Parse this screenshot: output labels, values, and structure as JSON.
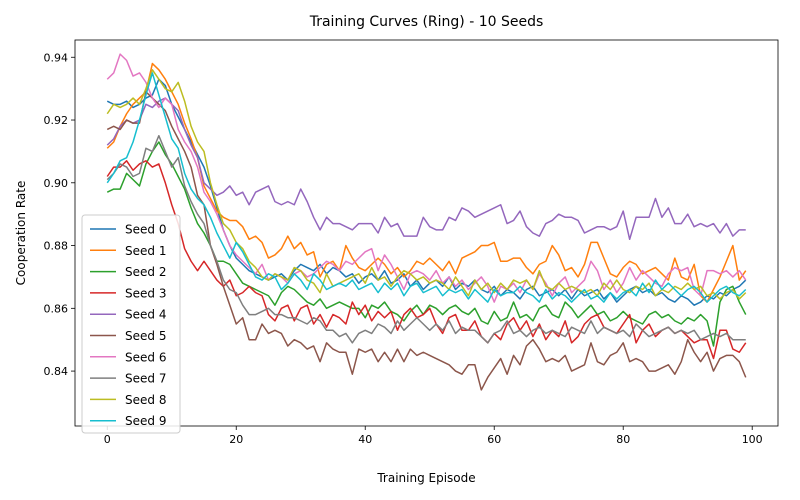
{
  "chart_data": {
    "type": "line",
    "title": "Training Curves (Ring) - 10 Seeds",
    "xlabel": "Training Episode",
    "ylabel": "Cooperation Rate",
    "xlim": [
      -5,
      104
    ],
    "ylim": [
      0.8225,
      0.9455
    ],
    "x_ticks": [
      0,
      20,
      40,
      60,
      80,
      100
    ],
    "y_ticks": [
      0.84,
      0.86,
      0.88,
      0.9,
      0.92,
      0.94
    ],
    "x_tick_labels": [
      "0",
      "20",
      "40",
      "60",
      "80",
      "100"
    ],
    "y_tick_labels": [
      "0.84",
      "0.86",
      "0.88",
      "0.90",
      "0.92",
      "0.94"
    ],
    "legend_position": "lower-left",
    "x": [
      0,
      1,
      2,
      3,
      4,
      5,
      6,
      7,
      8,
      9,
      10,
      11,
      12,
      13,
      14,
      15,
      16,
      17,
      18,
      19,
      20,
      21,
      22,
      23,
      24,
      25,
      26,
      27,
      28,
      29,
      30,
      31,
      32,
      33,
      34,
      35,
      36,
      37,
      38,
      39,
      40,
      41,
      42,
      43,
      44,
      45,
      46,
      47,
      48,
      49,
      50,
      51,
      52,
      53,
      54,
      55,
      56,
      57,
      58,
      59,
      60,
      61,
      62,
      63,
      64,
      65,
      66,
      67,
      68,
      69,
      70,
      71,
      72,
      73,
      74,
      75,
      76,
      77,
      78,
      79,
      80,
      81,
      82,
      83,
      84,
      85,
      86,
      87,
      88,
      89,
      90,
      91,
      92,
      93,
      94,
      95,
      96,
      97,
      98,
      99
    ],
    "series": [
      {
        "name": "Seed 0",
        "color": "#1f77b4",
        "values": [
          0.926,
          0.925,
          0.925,
          0.926,
          0.924,
          0.925,
          0.927,
          0.928,
          0.933,
          0.931,
          0.925,
          0.921,
          0.917,
          0.913,
          0.909,
          0.905,
          0.899,
          0.892,
          0.885,
          0.88,
          0.876,
          0.874,
          0.872,
          0.871,
          0.87,
          0.869,
          0.87,
          0.871,
          0.869,
          0.872,
          0.874,
          0.873,
          0.872,
          0.874,
          0.871,
          0.873,
          0.872,
          0.87,
          0.871,
          0.868,
          0.87,
          0.871,
          0.869,
          0.872,
          0.868,
          0.869,
          0.871,
          0.867,
          0.869,
          0.866,
          0.868,
          0.869,
          0.867,
          0.87,
          0.866,
          0.868,
          0.867,
          0.869,
          0.866,
          0.865,
          0.867,
          0.864,
          0.866,
          0.865,
          0.863,
          0.866,
          0.867,
          0.864,
          0.865,
          0.866,
          0.864,
          0.866,
          0.863,
          0.866,
          0.864,
          0.865,
          0.866,
          0.863,
          0.865,
          0.862,
          0.864,
          0.866,
          0.867,
          0.865,
          0.866,
          0.864,
          0.865,
          0.863,
          0.862,
          0.864,
          0.863,
          0.861,
          0.862,
          0.864,
          0.863,
          0.865,
          0.864,
          0.866,
          0.867,
          0.869
        ]
      },
      {
        "name": "Seed 1",
        "color": "#ff7f0e",
        "values": [
          0.911,
          0.913,
          0.918,
          0.922,
          0.925,
          0.927,
          0.929,
          0.938,
          0.936,
          0.933,
          0.929,
          0.925,
          0.919,
          0.914,
          0.908,
          0.899,
          0.895,
          0.891,
          0.889,
          0.888,
          0.888,
          0.886,
          0.882,
          0.883,
          0.881,
          0.876,
          0.877,
          0.879,
          0.883,
          0.879,
          0.881,
          0.877,
          0.878,
          0.87,
          0.874,
          0.875,
          0.872,
          0.88,
          0.876,
          0.873,
          0.872,
          0.874,
          0.876,
          0.874,
          0.871,
          0.873,
          0.87,
          0.872,
          0.875,
          0.874,
          0.876,
          0.874,
          0.872,
          0.875,
          0.871,
          0.876,
          0.877,
          0.878,
          0.88,
          0.88,
          0.881,
          0.875,
          0.875,
          0.876,
          0.876,
          0.873,
          0.871,
          0.874,
          0.875,
          0.88,
          0.877,
          0.872,
          0.873,
          0.87,
          0.874,
          0.881,
          0.881,
          0.876,
          0.871,
          0.87,
          0.873,
          0.875,
          0.874,
          0.871,
          0.872,
          0.873,
          0.871,
          0.869,
          0.876,
          0.87,
          0.869,
          0.874,
          0.864,
          0.862,
          0.866,
          0.87,
          0.875,
          0.88,
          0.869,
          0.872
        ]
      },
      {
        "name": "Seed 2",
        "color": "#2ca02c",
        "values": [
          0.897,
          0.898,
          0.898,
          0.903,
          0.901,
          0.899,
          0.906,
          0.91,
          0.913,
          0.909,
          0.906,
          0.902,
          0.898,
          0.892,
          0.887,
          0.884,
          0.88,
          0.875,
          0.875,
          0.874,
          0.871,
          0.868,
          0.867,
          0.866,
          0.865,
          0.864,
          0.861,
          0.865,
          0.867,
          0.866,
          0.864,
          0.862,
          0.861,
          0.863,
          0.86,
          0.861,
          0.862,
          0.861,
          0.86,
          0.86,
          0.857,
          0.861,
          0.86,
          0.862,
          0.859,
          0.858,
          0.856,
          0.859,
          0.861,
          0.858,
          0.861,
          0.86,
          0.858,
          0.86,
          0.861,
          0.859,
          0.858,
          0.86,
          0.856,
          0.855,
          0.859,
          0.856,
          0.857,
          0.862,
          0.857,
          0.858,
          0.856,
          0.86,
          0.861,
          0.858,
          0.857,
          0.862,
          0.86,
          0.857,
          0.859,
          0.861,
          0.858,
          0.859,
          0.856,
          0.857,
          0.859,
          0.857,
          0.856,
          0.855,
          0.858,
          0.859,
          0.857,
          0.858,
          0.856,
          0.855,
          0.857,
          0.856,
          0.858,
          0.856,
          0.848,
          0.862,
          0.866,
          0.867,
          0.862,
          0.858
        ]
      },
      {
        "name": "Seed 3",
        "color": "#d62728",
        "values": [
          0.902,
          0.905,
          0.905,
          0.907,
          0.904,
          0.906,
          0.907,
          0.905,
          0.906,
          0.9,
          0.893,
          0.887,
          0.879,
          0.875,
          0.872,
          0.875,
          0.872,
          0.869,
          0.867,
          0.869,
          0.864,
          0.865,
          0.867,
          0.865,
          0.864,
          0.858,
          0.856,
          0.86,
          0.861,
          0.856,
          0.86,
          0.861,
          0.855,
          0.858,
          0.854,
          0.858,
          0.857,
          0.855,
          0.862,
          0.858,
          0.861,
          0.856,
          0.859,
          0.857,
          0.859,
          0.853,
          0.858,
          0.86,
          0.857,
          0.858,
          0.86,
          0.855,
          0.852,
          0.857,
          0.858,
          0.853,
          0.853,
          0.856,
          0.851,
          0.849,
          0.852,
          0.85,
          0.855,
          0.857,
          0.853,
          0.856,
          0.851,
          0.855,
          0.85,
          0.853,
          0.851,
          0.856,
          0.849,
          0.851,
          0.855,
          0.857,
          0.858,
          0.854,
          0.853,
          0.852,
          0.855,
          0.858,
          0.849,
          0.853,
          0.855,
          0.851,
          0.853,
          0.854,
          0.852,
          0.853,
          0.851,
          0.849,
          0.85,
          0.85,
          0.844,
          0.853,
          0.853,
          0.847,
          0.846,
          0.849
        ]
      },
      {
        "name": "Seed 4",
        "color": "#9467bd",
        "values": [
          0.912,
          0.914,
          0.918,
          0.92,
          0.919,
          0.92,
          0.925,
          0.924,
          0.926,
          0.927,
          0.925,
          0.923,
          0.917,
          0.912,
          0.908,
          0.9,
          0.898,
          0.896,
          0.897,
          0.899,
          0.896,
          0.897,
          0.893,
          0.897,
          0.898,
          0.899,
          0.894,
          0.893,
          0.894,
          0.893,
          0.898,
          0.894,
          0.889,
          0.885,
          0.889,
          0.887,
          0.887,
          0.886,
          0.885,
          0.887,
          0.887,
          0.887,
          0.884,
          0.889,
          0.886,
          0.887,
          0.883,
          0.883,
          0.883,
          0.889,
          0.886,
          0.885,
          0.885,
          0.889,
          0.888,
          0.892,
          0.891,
          0.889,
          0.89,
          0.891,
          0.892,
          0.893,
          0.887,
          0.888,
          0.891,
          0.886,
          0.884,
          0.883,
          0.887,
          0.888,
          0.89,
          0.889,
          0.889,
          0.888,
          0.884,
          0.885,
          0.886,
          0.886,
          0.885,
          0.886,
          0.891,
          0.882,
          0.889,
          0.889,
          0.889,
          0.895,
          0.889,
          0.892,
          0.887,
          0.887,
          0.89,
          0.886,
          0.887,
          0.886,
          0.887,
          0.884,
          0.887,
          0.883,
          0.885,
          0.885
        ]
      },
      {
        "name": "Seed 5",
        "color": "#8c564b",
        "values": [
          0.917,
          0.918,
          0.917,
          0.92,
          0.919,
          0.919,
          0.929,
          0.927,
          0.925,
          0.923,
          0.918,
          0.914,
          0.91,
          0.905,
          0.896,
          0.893,
          0.88,
          0.874,
          0.867,
          0.861,
          0.855,
          0.857,
          0.85,
          0.85,
          0.855,
          0.852,
          0.853,
          0.852,
          0.848,
          0.85,
          0.849,
          0.847,
          0.848,
          0.843,
          0.849,
          0.847,
          0.846,
          0.846,
          0.839,
          0.847,
          0.846,
          0.847,
          0.843,
          0.846,
          0.843,
          0.847,
          0.843,
          0.847,
          0.845,
          0.846,
          0.845,
          0.844,
          0.843,
          0.842,
          0.84,
          0.839,
          0.842,
          0.842,
          0.834,
          0.838,
          0.841,
          0.844,
          0.839,
          0.845,
          0.842,
          0.848,
          0.85,
          0.847,
          0.843,
          0.844,
          0.843,
          0.845,
          0.84,
          0.841,
          0.842,
          0.849,
          0.843,
          0.842,
          0.845,
          0.846,
          0.849,
          0.843,
          0.844,
          0.843,
          0.84,
          0.84,
          0.841,
          0.842,
          0.839,
          0.843,
          0.85,
          0.846,
          0.843,
          0.846,
          0.84,
          0.844,
          0.845,
          0.845,
          0.843,
          0.838
        ]
      },
      {
        "name": "Seed 6",
        "color": "#e377c2",
        "values": [
          0.933,
          0.935,
          0.941,
          0.939,
          0.934,
          0.935,
          0.932,
          0.927,
          0.924,
          0.927,
          0.925,
          0.917,
          0.913,
          0.91,
          0.905,
          0.897,
          0.894,
          0.89,
          0.885,
          0.88,
          0.877,
          0.875,
          0.873,
          0.871,
          0.874,
          0.869,
          0.871,
          0.87,
          0.868,
          0.871,
          0.872,
          0.87,
          0.871,
          0.873,
          0.875,
          0.874,
          0.872,
          0.875,
          0.874,
          0.876,
          0.878,
          0.879,
          0.872,
          0.877,
          0.874,
          0.87,
          0.866,
          0.871,
          0.872,
          0.871,
          0.869,
          0.872,
          0.868,
          0.87,
          0.867,
          0.869,
          0.866,
          0.868,
          0.87,
          0.867,
          0.862,
          0.867,
          0.866,
          0.868,
          0.865,
          0.869,
          0.866,
          0.871,
          0.868,
          0.864,
          0.868,
          0.87,
          0.865,
          0.867,
          0.869,
          0.875,
          0.872,
          0.866,
          0.869,
          0.865,
          0.868,
          0.873,
          0.869,
          0.872,
          0.87,
          0.868,
          0.867,
          0.871,
          0.873,
          0.872,
          0.873,
          0.866,
          0.864,
          0.872,
          0.872,
          0.871,
          0.872,
          0.87,
          0.872,
          0.869
        ]
      },
      {
        "name": "Seed 7",
        "color": "#7f7f7f",
        "values": [
          0.901,
          0.903,
          0.906,
          0.905,
          0.902,
          0.903,
          0.911,
          0.91,
          0.915,
          0.91,
          0.905,
          0.908,
          0.899,
          0.894,
          0.89,
          0.887,
          0.88,
          0.875,
          0.869,
          0.866,
          0.865,
          0.861,
          0.858,
          0.858,
          0.859,
          0.86,
          0.858,
          0.858,
          0.857,
          0.857,
          0.856,
          0.855,
          0.857,
          0.856,
          0.853,
          0.853,
          0.851,
          0.852,
          0.849,
          0.852,
          0.853,
          0.852,
          0.855,
          0.854,
          0.852,
          0.856,
          0.853,
          0.855,
          0.857,
          0.855,
          0.853,
          0.855,
          0.853,
          0.856,
          0.852,
          0.854,
          0.853,
          0.853,
          0.851,
          0.849,
          0.852,
          0.853,
          0.856,
          0.852,
          0.853,
          0.851,
          0.853,
          0.854,
          0.852,
          0.853,
          0.852,
          0.851,
          0.854,
          0.853,
          0.852,
          0.856,
          0.852,
          0.854,
          0.853,
          0.852,
          0.853,
          0.851,
          0.855,
          0.853,
          0.851,
          0.852,
          0.853,
          0.854,
          0.852,
          0.853,
          0.852,
          0.853,
          0.85,
          0.851,
          0.852,
          0.851,
          0.852,
          0.85,
          0.85,
          0.85
        ]
      },
      {
        "name": "Seed 8",
        "color": "#bcbd22",
        "values": [
          0.922,
          0.925,
          0.924,
          0.925,
          0.927,
          0.925,
          0.93,
          0.936,
          0.933,
          0.93,
          0.929,
          0.932,
          0.926,
          0.918,
          0.913,
          0.91,
          0.9,
          0.893,
          0.887,
          0.885,
          0.881,
          0.879,
          0.875,
          0.873,
          0.87,
          0.869,
          0.871,
          0.87,
          0.869,
          0.873,
          0.872,
          0.869,
          0.868,
          0.865,
          0.871,
          0.867,
          0.868,
          0.869,
          0.87,
          0.871,
          0.868,
          0.873,
          0.869,
          0.87,
          0.867,
          0.87,
          0.872,
          0.871,
          0.869,
          0.87,
          0.868,
          0.869,
          0.868,
          0.866,
          0.87,
          0.867,
          0.864,
          0.869,
          0.866,
          0.868,
          0.865,
          0.868,
          0.866,
          0.869,
          0.868,
          0.869,
          0.866,
          0.872,
          0.867,
          0.866,
          0.868,
          0.866,
          0.867,
          0.866,
          0.865,
          0.866,
          0.864,
          0.868,
          0.866,
          0.869,
          0.866,
          0.865,
          0.867,
          0.866,
          0.868,
          0.864,
          0.866,
          0.865,
          0.867,
          0.866,
          0.868,
          0.866,
          0.867,
          0.864,
          0.865,
          0.863,
          0.865,
          0.866,
          0.863,
          0.865
        ]
      },
      {
        "name": "Seed 9",
        "color": "#17becf",
        "values": [
          0.9,
          0.903,
          0.907,
          0.908,
          0.913,
          0.92,
          0.928,
          0.935,
          0.928,
          0.921,
          0.914,
          0.911,
          0.903,
          0.898,
          0.895,
          0.893,
          0.889,
          0.884,
          0.88,
          0.876,
          0.881,
          0.878,
          0.874,
          0.87,
          0.869,
          0.871,
          0.87,
          0.866,
          0.868,
          0.871,
          0.869,
          0.866,
          0.871,
          0.869,
          0.866,
          0.867,
          0.868,
          0.867,
          0.869,
          0.866,
          0.867,
          0.868,
          0.865,
          0.868,
          0.866,
          0.868,
          0.864,
          0.867,
          0.868,
          0.865,
          0.866,
          0.867,
          0.864,
          0.866,
          0.865,
          0.866,
          0.863,
          0.866,
          0.864,
          0.862,
          0.866,
          0.864,
          0.865,
          0.865,
          0.867,
          0.865,
          0.864,
          0.862,
          0.866,
          0.863,
          0.865,
          0.864,
          0.862,
          0.864,
          0.866,
          0.863,
          0.864,
          0.862,
          0.865,
          0.863,
          0.865,
          0.866,
          0.864,
          0.868,
          0.865,
          0.869,
          0.866,
          0.868,
          0.866,
          0.864,
          0.866,
          0.867,
          0.865,
          0.862,
          0.864,
          0.866,
          0.867,
          0.865,
          0.864,
          0.866
        ]
      }
    ]
  }
}
